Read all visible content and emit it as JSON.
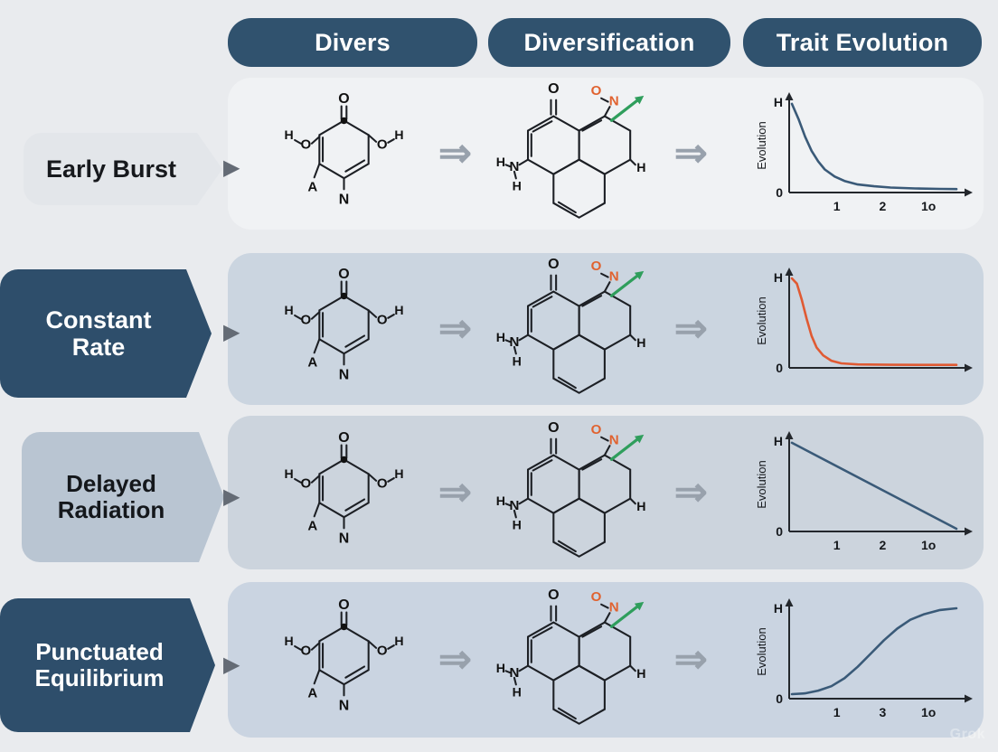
{
  "page": {
    "background": "#e9ebee",
    "watermark": "Grok"
  },
  "header": {
    "columns": [
      {
        "label": "Divers"
      },
      {
        "label": "Diversification"
      },
      {
        "label": "Trait Evolution"
      }
    ]
  },
  "icons": {
    "double_arrow": "⇒",
    "play": "▶"
  },
  "rows": [
    {
      "label": "Early Burst",
      "style": "light"
    },
    {
      "label": "Constant Rate",
      "style": "dark"
    },
    {
      "label": "Delayed Radiation",
      "style": "medium"
    },
    {
      "label": "Punctuated Equilibrium",
      "style": "dark"
    }
  ],
  "molecules": {
    "mol1": {
      "o_top": "O",
      "h_left": "H",
      "o_left": "O",
      "o_right": "O",
      "h_right": "H",
      "a_bottom": "A",
      "n_bottom": "N"
    },
    "mol2": {
      "o_top": "O",
      "o_orange": "O",
      "n_orange": "N",
      "h_left": "H",
      "n_left": "N",
      "h_below": "H",
      "h_right": "H"
    }
  },
  "chart_data": [
    {
      "type": "line",
      "title": "Early Burst",
      "color": "#3a5a78",
      "y_axis_label": "Evolution",
      "y_top_label": "H",
      "y_bottom_label": "0",
      "x_ticks": [
        "1",
        "2",
        "1o"
      ],
      "xlim": [
        0,
        10
      ],
      "ylim": [
        0,
        1
      ],
      "points": [
        [
          0,
          0.97
        ],
        [
          0.4,
          0.8
        ],
        [
          0.8,
          0.6
        ],
        [
          1.2,
          0.44
        ],
        [
          1.6,
          0.32
        ],
        [
          2,
          0.23
        ],
        [
          2.6,
          0.15
        ],
        [
          3.2,
          0.1
        ],
        [
          4,
          0.06
        ],
        [
          5,
          0.04
        ],
        [
          6,
          0.025
        ],
        [
          7.5,
          0.015
        ],
        [
          9,
          0.01
        ],
        [
          10,
          0.008
        ]
      ]
    },
    {
      "type": "line",
      "title": "Constant Rate",
      "color": "#e05a33",
      "y_axis_label": "Evolution",
      "y_top_label": "H",
      "y_bottom_label": "0",
      "x_ticks": [],
      "xlim": [
        0,
        10
      ],
      "ylim": [
        0,
        1
      ],
      "points": [
        [
          0,
          0.98
        ],
        [
          0.3,
          0.92
        ],
        [
          0.6,
          0.74
        ],
        [
          0.9,
          0.52
        ],
        [
          1.2,
          0.33
        ],
        [
          1.5,
          0.2
        ],
        [
          1.9,
          0.11
        ],
        [
          2.4,
          0.05
        ],
        [
          3,
          0.02
        ],
        [
          4,
          0.008
        ],
        [
          6,
          0.004
        ],
        [
          8,
          0.003
        ],
        [
          10,
          0.003
        ]
      ]
    },
    {
      "type": "line",
      "title": "Delayed Radiation",
      "color": "#3a5a78",
      "y_axis_label": "Evolution",
      "y_top_label": "H",
      "y_bottom_label": "0",
      "x_ticks": [
        "1",
        "2",
        "1o"
      ],
      "xlim": [
        0,
        10
      ],
      "ylim": [
        0,
        1
      ],
      "points": [
        [
          0,
          0.97
        ],
        [
          10,
          0.0
        ]
      ]
    },
    {
      "type": "line",
      "title": "Punctuated Equilibrium",
      "color": "#3a5a78",
      "y_axis_label": "Evolution",
      "y_top_label": "H",
      "y_bottom_label": "0",
      "x_ticks": [
        "1",
        "3",
        "1o"
      ],
      "xlim": [
        0,
        10
      ],
      "ylim": [
        0,
        1
      ],
      "points": [
        [
          0,
          0.02
        ],
        [
          0.8,
          0.03
        ],
        [
          1.6,
          0.06
        ],
        [
          2.4,
          0.11
        ],
        [
          3.2,
          0.2
        ],
        [
          4,
          0.33
        ],
        [
          4.8,
          0.48
        ],
        [
          5.6,
          0.63
        ],
        [
          6.4,
          0.76
        ],
        [
          7.2,
          0.86
        ],
        [
          8,
          0.92
        ],
        [
          9,
          0.97
        ],
        [
          10,
          0.99
        ]
      ]
    }
  ]
}
